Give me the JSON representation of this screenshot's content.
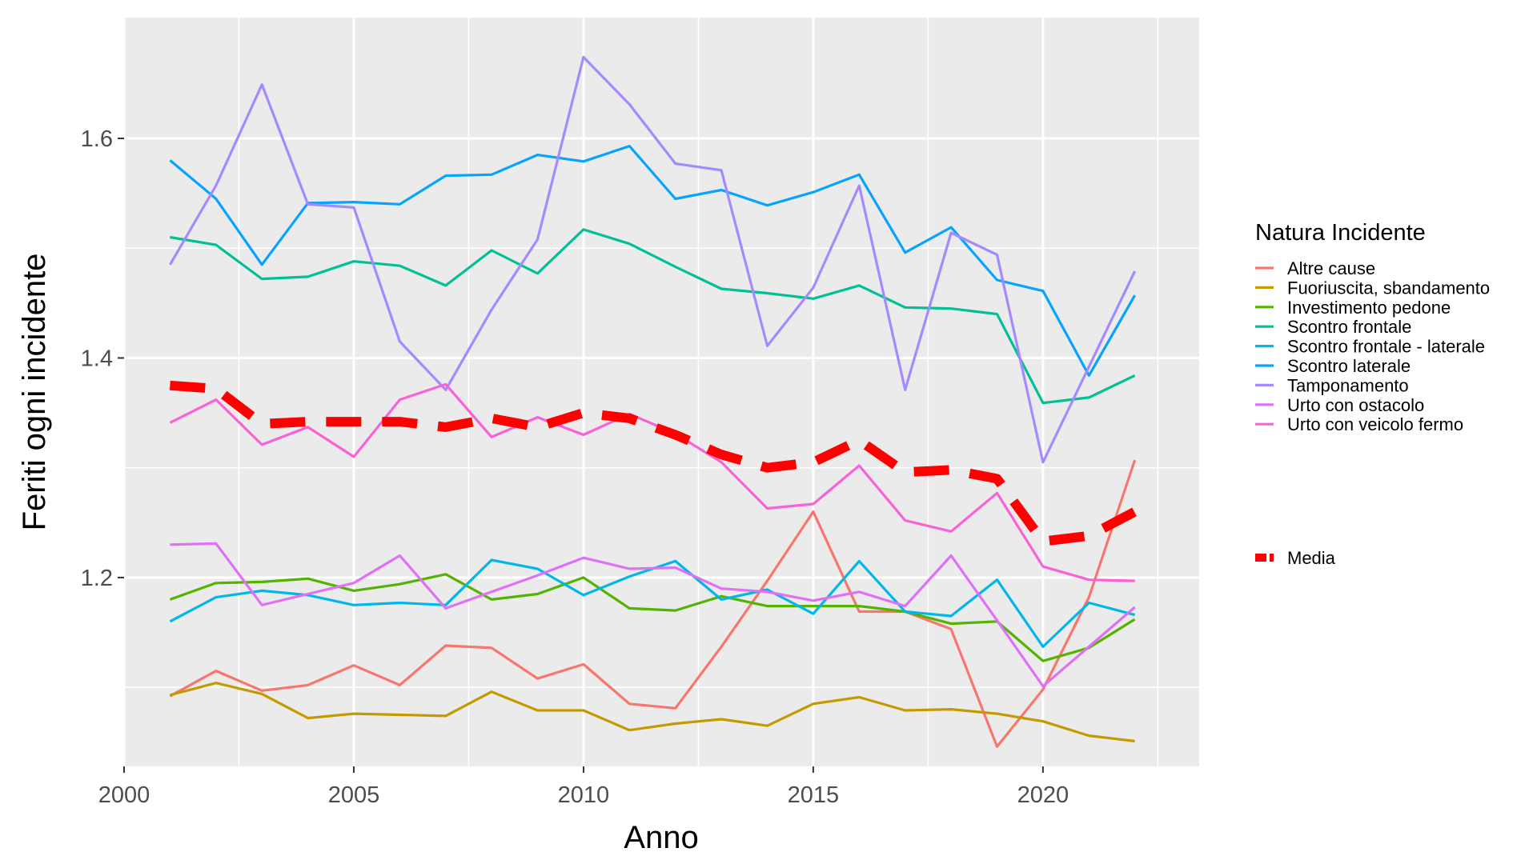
{
  "chart_data": {
    "type": "line",
    "xlabel": "Anno",
    "ylabel": "Feriti ogni incidente",
    "xlim": [
      2000,
      2023.4
    ],
    "ylim": [
      1.028,
      1.71
    ],
    "x_ticks": [
      2000,
      2005,
      2010,
      2015,
      2020
    ],
    "y_ticks": [
      1.2,
      1.4,
      1.6
    ],
    "y_tick_labels": [
      "1.2",
      "1.4",
      "1.6"
    ],
    "x_minor_ticks": [
      2002.5,
      2007.5,
      2012.5,
      2017.5,
      2022.5
    ],
    "y_minor_ticks": [
      1.1,
      1.3,
      1.5
    ],
    "grid": true,
    "background": "#ebebeb",
    "legend": {
      "title": "Natura Incidente",
      "placement": "right"
    },
    "x": [
      2001,
      2002,
      2003,
      2004,
      2005,
      2006,
      2007,
      2008,
      2009,
      2010,
      2011,
      2012,
      2013,
      2014,
      2015,
      2016,
      2017,
      2018,
      2019,
      2020,
      2021,
      2022
    ],
    "series": [
      {
        "name": "Altre cause",
        "color": "#F8766D",
        "values": [
          1.092,
          1.115,
          1.097,
          1.102,
          1.12,
          1.102,
          1.138,
          1.136,
          1.108,
          1.121,
          1.085,
          1.081,
          1.137,
          1.197,
          1.26,
          1.169,
          1.169,
          1.153,
          1.046,
          1.098,
          1.182,
          1.307
        ]
      },
      {
        "name": "Fuoriuscita, sbandamento",
        "color": "#C49A00",
        "values": [
          1.093,
          1.104,
          1.094,
          1.072,
          1.076,
          1.075,
          1.074,
          1.096,
          1.079,
          1.079,
          1.061,
          1.067,
          1.071,
          1.065,
          1.085,
          1.091,
          1.079,
          1.08,
          1.076,
          1.069,
          1.056,
          1.051
        ]
      },
      {
        "name": "Investimento pedone",
        "color": "#53B400",
        "values": [
          1.18,
          1.195,
          1.196,
          1.199,
          1.188,
          1.194,
          1.203,
          1.18,
          1.185,
          1.2,
          1.172,
          1.17,
          1.183,
          1.174,
          1.174,
          1.174,
          1.169,
          1.158,
          1.16,
          1.124,
          1.136,
          1.162
        ]
      },
      {
        "name": "Scontro frontale",
        "color": "#00C094",
        "values": [
          1.51,
          1.503,
          1.472,
          1.474,
          1.488,
          1.484,
          1.466,
          1.498,
          1.477,
          1.517,
          1.504,
          1.483,
          1.463,
          1.459,
          1.454,
          1.466,
          1.446,
          1.445,
          1.44,
          1.359,
          1.364,
          1.384
        ]
      },
      {
        "name": "Scontro frontale - laterale",
        "color": "#00B6EB",
        "values": [
          1.16,
          1.182,
          1.188,
          1.184,
          1.175,
          1.177,
          1.175,
          1.216,
          1.208,
          1.184,
          1.201,
          1.215,
          1.18,
          1.189,
          1.167,
          1.215,
          1.169,
          1.165,
          1.198,
          1.137,
          1.177,
          1.166
        ]
      },
      {
        "name": "Scontro laterale",
        "color": "#06A4FF",
        "values": [
          1.58,
          1.545,
          1.485,
          1.541,
          1.542,
          1.54,
          1.566,
          1.567,
          1.585,
          1.579,
          1.593,
          1.545,
          1.553,
          1.539,
          1.551,
          1.567,
          1.496,
          1.519,
          1.471,
          1.461,
          1.384,
          1.457
        ]
      },
      {
        "name": "Tamponamento",
        "color": "#A58AFF",
        "values": [
          1.485,
          1.557,
          1.649,
          1.54,
          1.537,
          1.415,
          1.371,
          1.444,
          1.508,
          1.674,
          1.631,
          1.577,
          1.571,
          1.411,
          1.464,
          1.557,
          1.371,
          1.514,
          1.494,
          1.305,
          1.392,
          1.479
        ]
      },
      {
        "name": "Urto con ostacolo",
        "color": "#DF70F8",
        "values": [
          1.23,
          1.231,
          1.175,
          1.185,
          1.195,
          1.22,
          1.172,
          1.187,
          1.202,
          1.218,
          1.208,
          1.209,
          1.19,
          1.187,
          1.179,
          1.187,
          1.174,
          1.22,
          1.161,
          1.101,
          1.137,
          1.173
        ]
      },
      {
        "name": "Urto con veicolo fermo",
        "color": "#FB61D7",
        "values": [
          1.341,
          1.362,
          1.321,
          1.337,
          1.31,
          1.362,
          1.376,
          1.328,
          1.346,
          1.33,
          1.349,
          1.331,
          1.305,
          1.263,
          1.267,
          1.302,
          1.252,
          1.242,
          1.277,
          1.21,
          1.198,
          1.197
        ]
      }
    ],
    "mean_series": {
      "name": "Media",
      "color": "#FF0000",
      "style": "dashed",
      "values": [
        1.375,
        1.372,
        1.34,
        1.342,
        1.342,
        1.342,
        1.337,
        1.345,
        1.337,
        1.35,
        1.345,
        1.33,
        1.312,
        1.3,
        1.305,
        1.325,
        1.296,
        1.298,
        1.29,
        1.233,
        1.238,
        1.26
      ]
    }
  }
}
